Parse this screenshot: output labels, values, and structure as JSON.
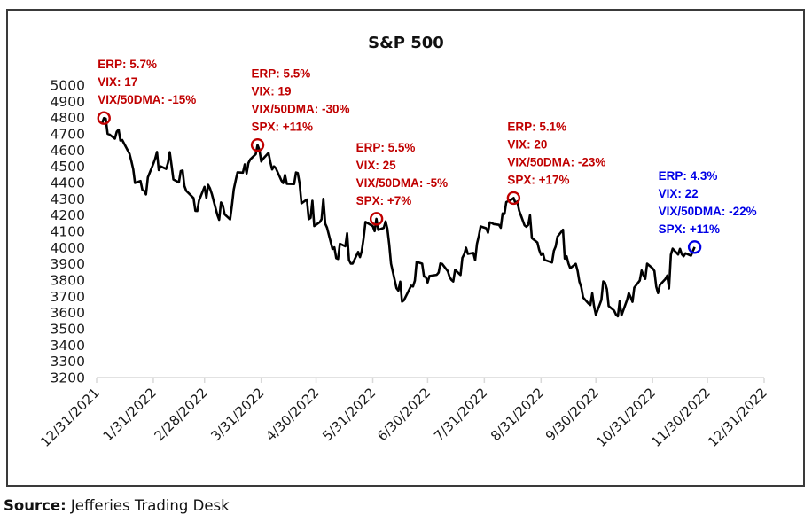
{
  "chart_data": {
    "type": "line",
    "title": "S&P 500",
    "xlabel": "",
    "ylabel": "",
    "ylim": [
      3200,
      5000
    ],
    "yticks": [
      5000,
      4900,
      4800,
      4700,
      4600,
      4500,
      4400,
      4300,
      4200,
      4100,
      4000,
      3900,
      3800,
      3700,
      3600,
      3500,
      3400,
      3300,
      3200
    ],
    "x_range_days": [
      0,
      365
    ],
    "x_origin": "12/31/2021",
    "xticks": [
      {
        "label": "12/31/2021",
        "day": 0
      },
      {
        "label": "1/31/2022",
        "day": 31
      },
      {
        "label": "2/28/2022",
        "day": 59
      },
      {
        "label": "3/31/2022",
        "day": 90
      },
      {
        "label": "4/30/2022",
        "day": 120
      },
      {
        "label": "5/31/2022",
        "day": 151
      },
      {
        "label": "6/30/2022",
        "day": 181
      },
      {
        "label": "7/31/2022",
        "day": 212
      },
      {
        "label": "8/31/2022",
        "day": 243
      },
      {
        "label": "9/30/2022",
        "day": 273
      },
      {
        "label": "10/31/2022",
        "day": 304
      },
      {
        "label": "11/30/2022",
        "day": 334
      },
      {
        "label": "12/31/2022",
        "day": 365
      }
    ],
    "grid": false,
    "legend": "none",
    "series": [
      {
        "name": "S&P 500",
        "color": "#000000",
        "points": [
          [
            3,
            4766
          ],
          [
            4,
            4797
          ],
          [
            5,
            4793
          ],
          [
            6,
            4700
          ],
          [
            7,
            4696
          ],
          [
            10,
            4670
          ],
          [
            11,
            4713
          ],
          [
            12,
            4726
          ],
          [
            13,
            4659
          ],
          [
            14,
            4662
          ],
          [
            18,
            4577
          ],
          [
            19,
            4532
          ],
          [
            20,
            4482
          ],
          [
            21,
            4398
          ],
          [
            24,
            4410
          ],
          [
            25,
            4356
          ],
          [
            26,
            4349
          ],
          [
            27,
            4327
          ],
          [
            28,
            4432
          ],
          [
            31,
            4516
          ],
          [
            32,
            4546
          ],
          [
            33,
            4589
          ],
          [
            34,
            4477
          ],
          [
            35,
            4500
          ],
          [
            38,
            4484
          ],
          [
            39,
            4521
          ],
          [
            40,
            4587
          ],
          [
            41,
            4504
          ],
          [
            42,
            4419
          ],
          [
            45,
            4401
          ],
          [
            46,
            4471
          ],
          [
            47,
            4475
          ],
          [
            48,
            4380
          ],
          [
            49,
            4349
          ],
          [
            53,
            4305
          ],
          [
            54,
            4226
          ],
          [
            55,
            4225
          ],
          [
            56,
            4289
          ],
          [
            59,
            4374
          ],
          [
            60,
            4306
          ],
          [
            61,
            4386
          ],
          [
            62,
            4364
          ],
          [
            63,
            4329
          ],
          [
            66,
            4201
          ],
          [
            67,
            4171
          ],
          [
            68,
            4278
          ],
          [
            69,
            4260
          ],
          [
            70,
            4205
          ],
          [
            73,
            4173
          ],
          [
            74,
            4262
          ],
          [
            75,
            4358
          ],
          [
            76,
            4412
          ],
          [
            77,
            4463
          ],
          [
            80,
            4461
          ],
          [
            81,
            4512
          ],
          [
            82,
            4456
          ],
          [
            83,
            4520
          ],
          [
            84,
            4543
          ],
          [
            87,
            4575
          ],
          [
            88,
            4631
          ],
          [
            89,
            4602
          ],
          [
            90,
            4530
          ],
          [
            91,
            4546
          ],
          [
            94,
            4583
          ],
          [
            95,
            4526
          ],
          [
            96,
            4481
          ],
          [
            97,
            4500
          ],
          [
            98,
            4488
          ],
          [
            101,
            4413
          ],
          [
            102,
            4397
          ],
          [
            103,
            4447
          ],
          [
            104,
            4392
          ],
          [
            108,
            4391
          ],
          [
            109,
            4462
          ],
          [
            110,
            4459
          ],
          [
            111,
            4393
          ],
          [
            112,
            4272
          ],
          [
            115,
            4296
          ],
          [
            116,
            4175
          ],
          [
            117,
            4183
          ],
          [
            118,
            4288
          ],
          [
            119,
            4132
          ],
          [
            122,
            4156
          ],
          [
            123,
            4175
          ],
          [
            124,
            4300
          ],
          [
            125,
            4147
          ],
          [
            126,
            4123
          ],
          [
            129,
            3991
          ],
          [
            130,
            4001
          ],
          [
            131,
            3935
          ],
          [
            132,
            3930
          ],
          [
            133,
            4023
          ],
          [
            136,
            4008
          ],
          [
            137,
            4088
          ],
          [
            138,
            3923
          ],
          [
            139,
            3901
          ],
          [
            140,
            3901
          ],
          [
            143,
            3973
          ],
          [
            144,
            3941
          ],
          [
            145,
            3979
          ],
          [
            146,
            4058
          ],
          [
            147,
            4158
          ],
          [
            151,
            4132
          ],
          [
            152,
            4101
          ],
          [
            153,
            4177
          ],
          [
            154,
            4109
          ],
          [
            157,
            4121
          ],
          [
            158,
            4161
          ],
          [
            159,
            4116
          ],
          [
            160,
            4018
          ],
          [
            161,
            3901
          ],
          [
            164,
            3750
          ],
          [
            165,
            3735
          ],
          [
            166,
            3790
          ],
          [
            167,
            3667
          ],
          [
            168,
            3675
          ],
          [
            172,
            3765
          ],
          [
            173,
            3760
          ],
          [
            174,
            3796
          ],
          [
            175,
            3912
          ],
          [
            178,
            3901
          ],
          [
            179,
            3821
          ],
          [
            180,
            3819
          ],
          [
            181,
            3785
          ],
          [
            182,
            3825
          ],
          [
            186,
            3832
          ],
          [
            187,
            3846
          ],
          [
            188,
            3902
          ],
          [
            189,
            3899
          ],
          [
            192,
            3855
          ],
          [
            193,
            3819
          ],
          [
            194,
            3801
          ],
          [
            195,
            3791
          ],
          [
            196,
            3863
          ],
          [
            199,
            3831
          ],
          [
            200,
            3937
          ],
          [
            201,
            3960
          ],
          [
            202,
            3999
          ],
          [
            203,
            3961
          ],
          [
            206,
            3967
          ],
          [
            207,
            3922
          ],
          [
            208,
            4024
          ],
          [
            209,
            4073
          ],
          [
            210,
            4130
          ],
          [
            213,
            4119
          ],
          [
            214,
            4091
          ],
          [
            215,
            4155
          ],
          [
            216,
            4152
          ],
          [
            217,
            4145
          ],
          [
            220,
            4140
          ],
          [
            221,
            4122
          ],
          [
            222,
            4210
          ],
          [
            223,
            4207
          ],
          [
            224,
            4280
          ],
          [
            227,
            4297
          ],
          [
            228,
            4305
          ],
          [
            229,
            4274
          ],
          [
            230,
            4284
          ],
          [
            231,
            4228
          ],
          [
            234,
            4137
          ],
          [
            235,
            4128
          ],
          [
            236,
            4140
          ],
          [
            237,
            4199
          ],
          [
            238,
            4058
          ],
          [
            241,
            4031
          ],
          [
            242,
            3986
          ],
          [
            243,
            3955
          ],
          [
            244,
            3966
          ],
          [
            245,
            3924
          ],
          [
            249,
            3908
          ],
          [
            250,
            3980
          ],
          [
            251,
            4006
          ],
          [
            252,
            4067
          ],
          [
            255,
            4110
          ],
          [
            256,
            3932
          ],
          [
            257,
            3946
          ],
          [
            258,
            3901
          ],
          [
            259,
            3873
          ],
          [
            262,
            3900
          ],
          [
            263,
            3856
          ],
          [
            264,
            3790
          ],
          [
            265,
            3757
          ],
          [
            266,
            3693
          ],
          [
            269,
            3655
          ],
          [
            270,
            3647
          ],
          [
            271,
            3719
          ],
          [
            272,
            3640
          ],
          [
            273,
            3586
          ],
          [
            276,
            3678
          ],
          [
            277,
            3791
          ],
          [
            278,
            3783
          ],
          [
            279,
            3745
          ],
          [
            280,
            3640
          ],
          [
            283,
            3612
          ],
          [
            284,
            3588
          ],
          [
            285,
            3577
          ],
          [
            286,
            3669
          ],
          [
            287,
            3583
          ],
          [
            290,
            3677
          ],
          [
            291,
            3720
          ],
          [
            292,
            3695
          ],
          [
            293,
            3666
          ],
          [
            294,
            3753
          ],
          [
            297,
            3797
          ],
          [
            298,
            3859
          ],
          [
            299,
            3830
          ],
          [
            300,
            3807
          ],
          [
            301,
            3901
          ],
          [
            304,
            3872
          ],
          [
            305,
            3856
          ],
          [
            306,
            3759
          ],
          [
            307,
            3720
          ],
          [
            308,
            3770
          ],
          [
            311,
            3806
          ],
          [
            312,
            3828
          ],
          [
            313,
            3749
          ],
          [
            314,
            3956
          ],
          [
            315,
            3993
          ],
          [
            318,
            3957
          ],
          [
            319,
            3992
          ],
          [
            320,
            3958
          ],
          [
            321,
            3946
          ],
          [
            322,
            3965
          ],
          [
            325,
            3950
          ],
          [
            326,
            3978
          ],
          [
            327,
            4003
          ]
        ]
      }
    ],
    "annotations": [
      {
        "day": 4,
        "value": 4797,
        "color": "#c00000",
        "lines": [
          "ERP: 5.7%",
          "VIX: 17",
          "VIX/50DMA: -15%"
        ]
      },
      {
        "day": 88,
        "value": 4631,
        "color": "#c00000",
        "lines": [
          "ERP: 5.5%",
          "VIX: 19",
          "VIX/50DMA: -30%",
          "SPX: +11%"
        ]
      },
      {
        "day": 153,
        "value": 4177,
        "color": "#c00000",
        "lines": [
          "ERP: 5.5%",
          "VIX: 25",
          "VIX/50DMA: -5%",
          "SPX: +7%"
        ]
      },
      {
        "day": 228,
        "value": 4305,
        "color": "#c00000",
        "lines": [
          "ERP: 5.1%",
          "VIX: 20",
          "VIX/50DMA: -23%",
          "SPX: +17%"
        ]
      },
      {
        "day": 327,
        "value": 4003,
        "color": "#0000e6",
        "lines": [
          "ERP: 4.3%",
          "VIX: 22",
          "VIX/50DMA: -22%",
          "SPX: +11%"
        ]
      }
    ]
  },
  "footer": {
    "source_label": "Source:",
    "source_text": " Jefferies Trading Desk"
  }
}
